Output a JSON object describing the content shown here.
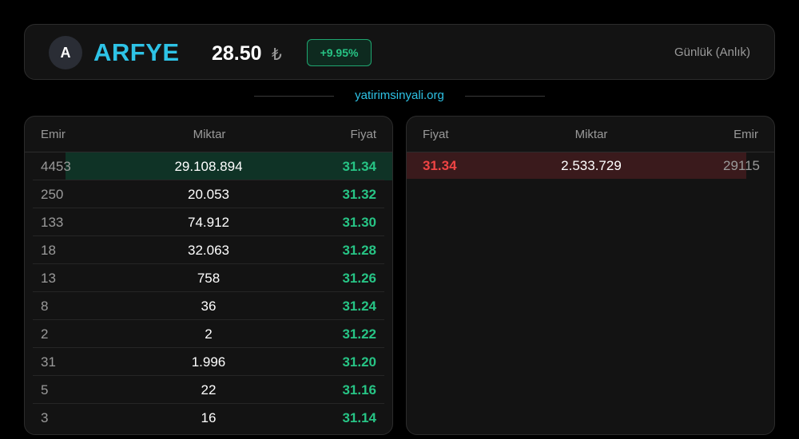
{
  "header": {
    "avatar_letter": "A",
    "ticker": "ARFYE",
    "price": "28.50",
    "currency_symbol": "₺",
    "change": "+9.95%",
    "period": "Günlük (Anlık)"
  },
  "site": "yatirimsinyali.org",
  "bids": {
    "columns": {
      "emir": "Emir",
      "miktar": "Miktar",
      "fiyat": "Fiyat"
    },
    "rows": [
      {
        "emir": "4453",
        "miktar": "29.108.894",
        "fiyat": "31.34",
        "depth": 0.93
      },
      {
        "emir": "250",
        "miktar": "20.053",
        "fiyat": "31.32",
        "depth": 0
      },
      {
        "emir": "133",
        "miktar": "74.912",
        "fiyat": "31.30",
        "depth": 0
      },
      {
        "emir": "18",
        "miktar": "32.063",
        "fiyat": "31.28",
        "depth": 0
      },
      {
        "emir": "13",
        "miktar": "758",
        "fiyat": "31.26",
        "depth": 0
      },
      {
        "emir": "8",
        "miktar": "36",
        "fiyat": "31.24",
        "depth": 0
      },
      {
        "emir": "2",
        "miktar": "2",
        "fiyat": "31.22",
        "depth": 0
      },
      {
        "emir": "31",
        "miktar": "1.996",
        "fiyat": "31.20",
        "depth": 0
      },
      {
        "emir": "5",
        "miktar": "22",
        "fiyat": "31.16",
        "depth": 0
      },
      {
        "emir": "3",
        "miktar": "16",
        "fiyat": "31.14",
        "depth": 0
      }
    ]
  },
  "asks": {
    "columns": {
      "fiyat": "Fiyat",
      "miktar": "Miktar",
      "emir": "Emir"
    },
    "rows": [
      {
        "fiyat": "31.34",
        "miktar": "2.533.729",
        "emir": "29115",
        "depth": 0.92
      }
    ]
  },
  "colors": {
    "accent": "#2ec3e6",
    "bid": "#27c485",
    "ask": "#ef4444"
  }
}
